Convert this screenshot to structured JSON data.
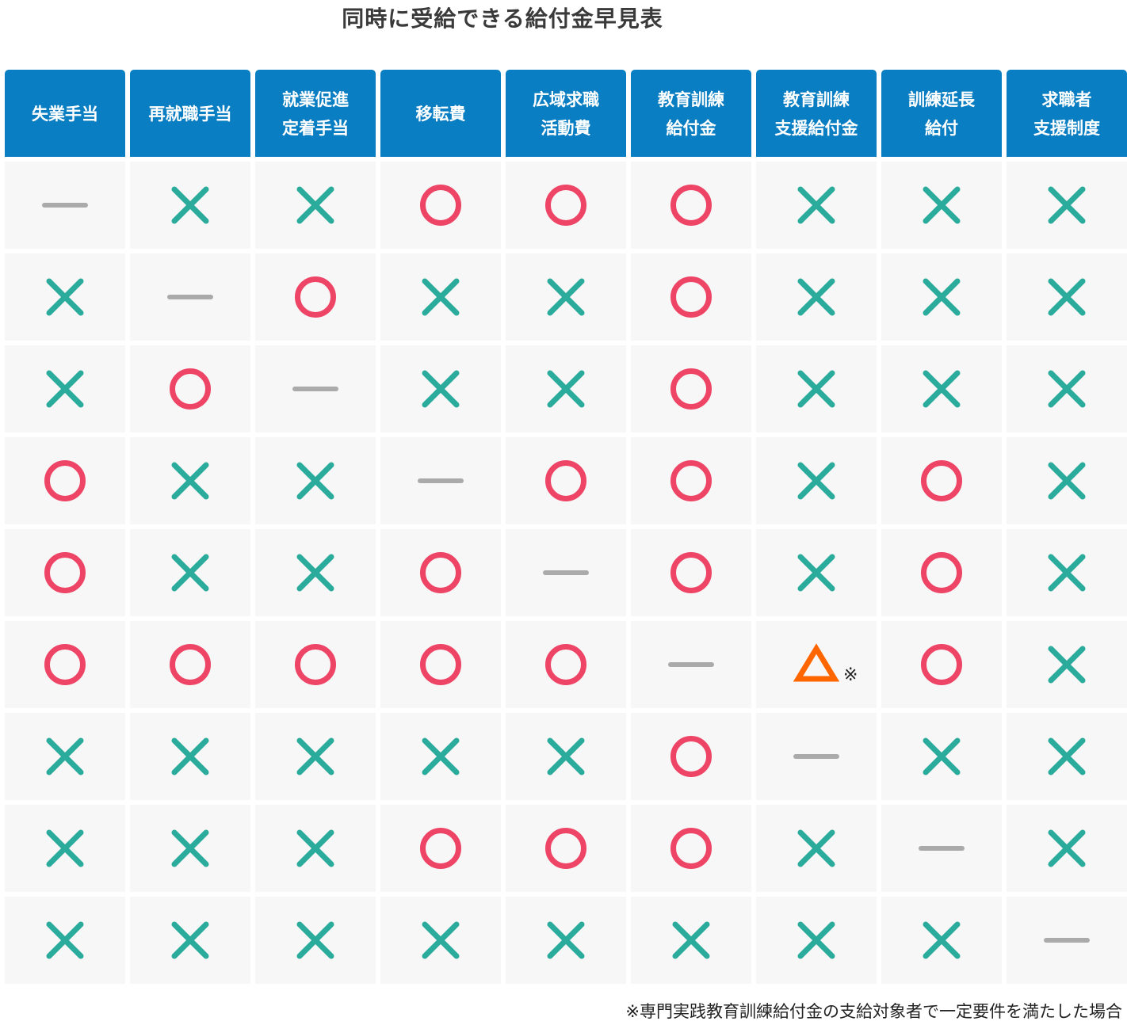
{
  "title": "同時に受給できる給付金早見表",
  "headers": [
    "失業手当",
    "再就職手当",
    "就業促進\n定着手当",
    "移転費",
    "広域求職\n活動費",
    "教育訓練\n給付金",
    "教育訓練\n支援給付金",
    "訓練延長\n給付",
    "求職者\n支援制度"
  ],
  "rows": [
    [
      "dash",
      "cross",
      "cross",
      "circle",
      "circle",
      "circle",
      "cross",
      "cross",
      "cross"
    ],
    [
      "cross",
      "dash",
      "circle",
      "cross",
      "cross",
      "circle",
      "cross",
      "cross",
      "cross"
    ],
    [
      "cross",
      "circle",
      "dash",
      "cross",
      "cross",
      "circle",
      "cross",
      "cross",
      "cross"
    ],
    [
      "circle",
      "cross",
      "cross",
      "dash",
      "circle",
      "circle",
      "cross",
      "circle",
      "cross"
    ],
    [
      "circle",
      "cross",
      "cross",
      "circle",
      "dash",
      "circle",
      "cross",
      "circle",
      "cross"
    ],
    [
      "circle",
      "circle",
      "circle",
      "circle",
      "circle",
      "dash",
      "triangle",
      "circle",
      "cross"
    ],
    [
      "cross",
      "cross",
      "cross",
      "cross",
      "cross",
      "circle",
      "dash",
      "cross",
      "cross"
    ],
    [
      "cross",
      "cross",
      "cross",
      "circle",
      "circle",
      "circle",
      "cross",
      "dash",
      "cross"
    ],
    [
      "cross",
      "cross",
      "cross",
      "cross",
      "cross",
      "cross",
      "cross",
      "cross",
      "dash"
    ]
  ],
  "triangle_note_mark": "※",
  "footnote": "※専門実践教育訓練給付金の支給対象者で一定要件を満たした場合",
  "colors": {
    "header": "#0a7ec2",
    "circle": "#ee4566",
    "cross": "#2aab9b",
    "triangle": "#ff6600",
    "dash": "#aaaaaa",
    "cell": "#f7f7f7"
  }
}
